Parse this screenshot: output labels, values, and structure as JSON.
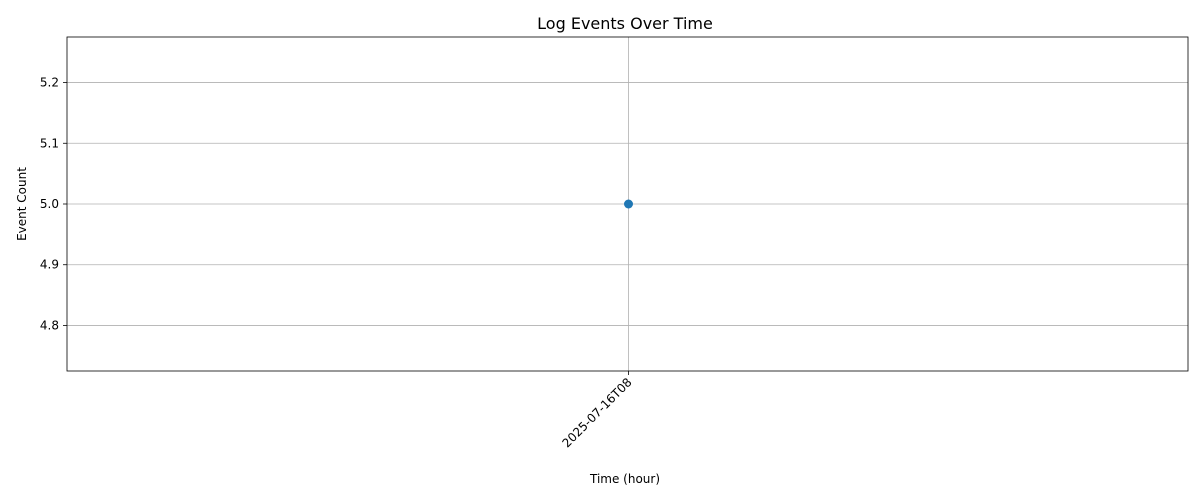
{
  "chart_data": {
    "type": "line",
    "title": "Log Events Over Time",
    "xlabel": "Time (hour)",
    "ylabel": "Event Count",
    "x": [
      "2025-07-16T08"
    ],
    "series": [
      {
        "values": [
          5.0
        ],
        "color": "#1f77b4",
        "marker": "circle"
      }
    ],
    "ylim": [
      4.725,
      5.275
    ],
    "yticks": [
      {
        "value": 4.8,
        "label": "4.8"
      },
      {
        "value": 4.9,
        "label": "4.9"
      },
      {
        "value": 5.0,
        "label": "5.0"
      },
      {
        "value": 5.1,
        "label": "5.1"
      },
      {
        "value": 5.2,
        "label": "5.2"
      }
    ],
    "grid": true,
    "legend": false
  }
}
